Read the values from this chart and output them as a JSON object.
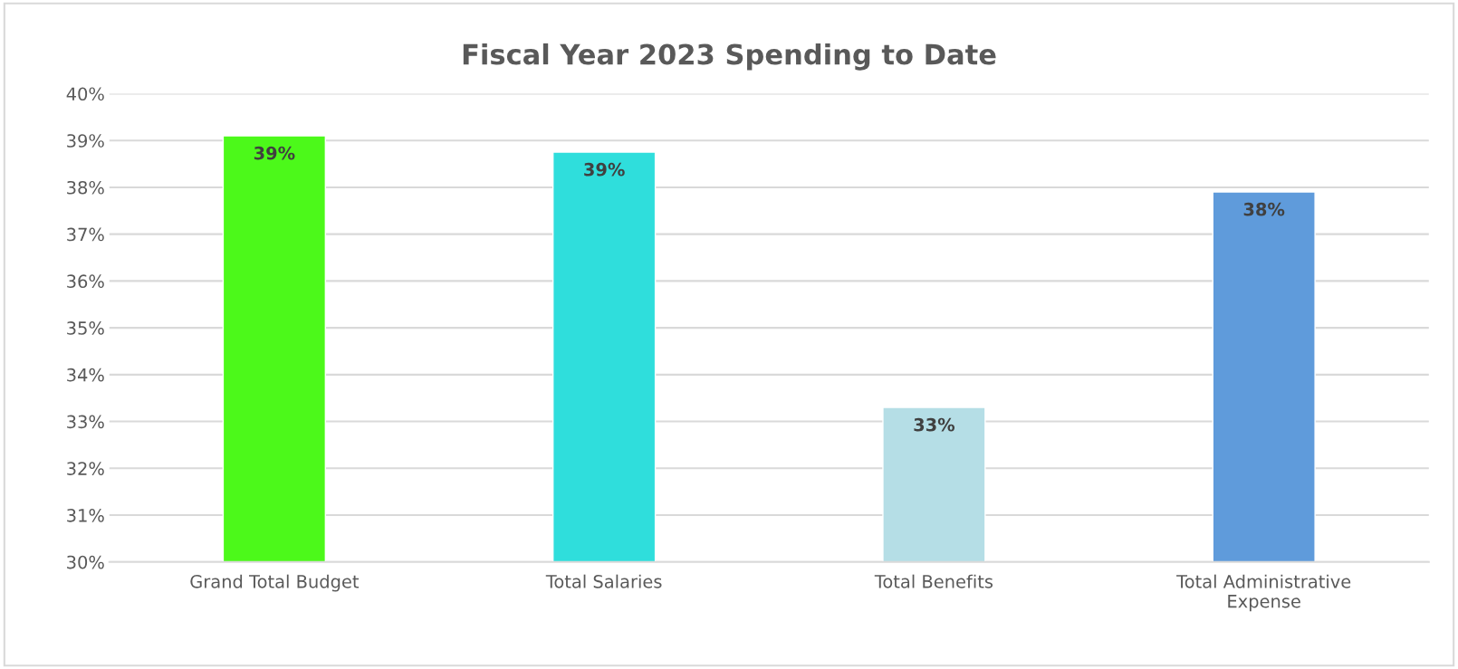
{
  "chart_data": {
    "type": "bar",
    "title": "Fiscal Year 2023 Spending to Date",
    "categories": [
      "Grand Total Budget",
      "Total Salaries",
      "Total Benefits",
      "Total Administrative Expense"
    ],
    "values": [
      39.1,
      38.75,
      33.3,
      37.9
    ],
    "colors": [
      "#4cf91a",
      "#2fdedc",
      "#b5dee6",
      "#5f9bdb"
    ],
    "value_labels": [
      "39%",
      "39%",
      "33%",
      "38%"
    ],
    "ylim": [
      30,
      40
    ],
    "yticks": [
      {
        "value": 30,
        "label": "30%"
      },
      {
        "value": 31,
        "label": "31%"
      },
      {
        "value": 32,
        "label": "32%"
      },
      {
        "value": 33,
        "label": "33%"
      },
      {
        "value": 34,
        "label": "34%"
      },
      {
        "value": 35,
        "label": "35%"
      },
      {
        "value": 36,
        "label": "36%"
      },
      {
        "value": 37,
        "label": "37%"
      },
      {
        "value": 38,
        "label": "38%"
      },
      {
        "value": 39,
        "label": "39%"
      },
      {
        "value": 40,
        "label": "40%"
      }
    ],
    "grid": "y"
  }
}
